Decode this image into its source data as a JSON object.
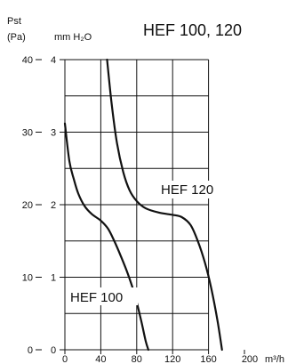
{
  "chart_data": {
    "type": "line",
    "title": "HEF 100, 120",
    "axes": {
      "left_outer_label_top": "Pst",
      "left_outer_label_bottom": "(Pa)",
      "left_inner_label": "mm H₂O",
      "bottom_unit": "m³/h"
    },
    "x": {
      "min": 0,
      "max": 200,
      "ticks": [
        0,
        40,
        80,
        120,
        160,
        200
      ]
    },
    "y_pa": {
      "min": 0,
      "max": 40,
      "ticks": [
        0,
        10,
        20,
        30,
        40
      ]
    },
    "y_mmh2o": {
      "min": 0,
      "max": 4,
      "ticks": [
        0,
        1,
        2,
        3,
        4
      ]
    },
    "grid": true,
    "series": [
      {
        "name": "HEF 100",
        "points": [
          [
            0,
            31.2
          ],
          [
            5,
            26
          ],
          [
            10,
            23.5
          ],
          [
            15,
            21.5
          ],
          [
            22,
            19.8
          ],
          [
            30,
            18.7
          ],
          [
            40,
            17.8
          ],
          [
            48,
            16.7
          ],
          [
            55,
            15.0
          ],
          [
            62,
            13.0
          ],
          [
            70,
            10.5
          ],
          [
            78,
            7.5
          ],
          [
            85,
            4.0
          ],
          [
            90,
            1.2
          ],
          [
            93,
            0
          ]
        ]
      },
      {
        "name": "HEF 120",
        "points": [
          [
            47,
            40
          ],
          [
            52,
            34
          ],
          [
            58,
            28.5
          ],
          [
            65,
            24.5
          ],
          [
            72,
            22.0
          ],
          [
            80,
            20.5
          ],
          [
            90,
            19.5
          ],
          [
            105,
            18.9
          ],
          [
            120,
            18.6
          ],
          [
            130,
            18.3
          ],
          [
            140,
            17.2
          ],
          [
            148,
            15.0
          ],
          [
            156,
            12.0
          ],
          [
            163,
            8.5
          ],
          [
            170,
            4.0
          ],
          [
            175,
            0
          ]
        ]
      }
    ]
  }
}
